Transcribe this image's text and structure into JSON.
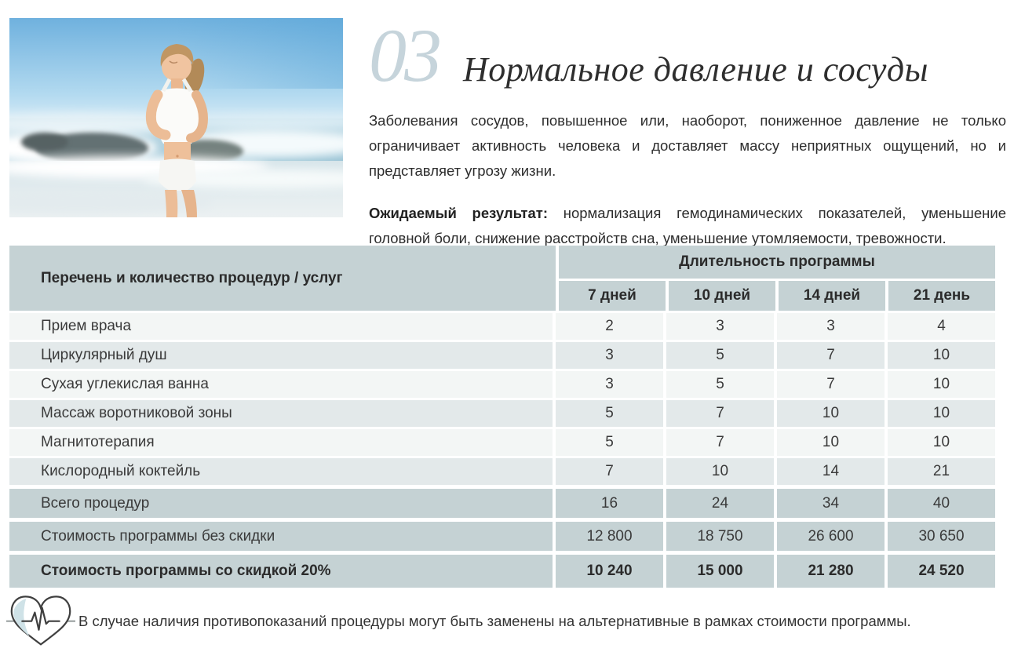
{
  "header": {
    "section_number": "03",
    "title": "Нормальное давление и сосуды"
  },
  "intro": {
    "text": "Заболевания сосудов, повышенное или, наоборот, пониженное давление не только ограничивает активность человека и доставляет массу неприятных ощущений, но и представляет угрозу жизни."
  },
  "expected": {
    "label": "Ожидаемый результат:",
    "text": "нормализация гемодинамических показателей, уменьшение головной боли, снижение расстройств сна, уменьшение утомляемости, тревожности."
  },
  "photo": {
    "alt": "woman jogging on a sunny beach with breaking ocean waves"
  },
  "table": {
    "col1_header": "Перечень и количество процедур / услуг",
    "group_header": "Длительность программы",
    "duration_headers": [
      "7 дней",
      "10 дней",
      "14 дней",
      "21 день"
    ],
    "rows": [
      {
        "label": "Прием врача",
        "values": [
          "2",
          "3",
          "3",
          "4"
        ],
        "style": "light"
      },
      {
        "label": "Циркулярный душ",
        "values": [
          "3",
          "5",
          "7",
          "10"
        ],
        "style": "gray"
      },
      {
        "label": "Сухая углекислая ванна",
        "values": [
          "3",
          "5",
          "7",
          "10"
        ],
        "style": "light"
      },
      {
        "label": "Массаж воротниковой зоны",
        "values": [
          "5",
          "7",
          "10",
          "10"
        ],
        "style": "gray"
      },
      {
        "label": "Магнитотерапия",
        "values": [
          "5",
          "7",
          "10",
          "10"
        ],
        "style": "light"
      },
      {
        "label": "Кислородный коктейль",
        "values": [
          "7",
          "10",
          "14",
          "21"
        ],
        "style": "gray"
      },
      {
        "label": "Всего процедур",
        "values": [
          "16",
          "24",
          "34",
          "40"
        ],
        "style": "accent"
      },
      {
        "label": "Стоимость программы без скидки",
        "values": [
          "12 800",
          "18 750",
          "26 600",
          "30 650"
        ],
        "style": "accent"
      },
      {
        "label": "Стоимость программы со скидкой 20%",
        "values": [
          "10 240",
          "15 000",
          "21 280",
          "24 520"
        ],
        "style": "accent bold"
      }
    ]
  },
  "footer": {
    "icon": "heart-ecg-icon",
    "note": "В случае наличия противопоказаний процедуры могут быть заменены на альтернативные в рамках стоимости программы."
  },
  "colors": {
    "accent_bg": "#c5d2d4",
    "row_light": "#f3f6f5",
    "row_gray": "#e3e9ea",
    "section_number": "#c6d4db",
    "text_dark": "#2d2d2d"
  }
}
